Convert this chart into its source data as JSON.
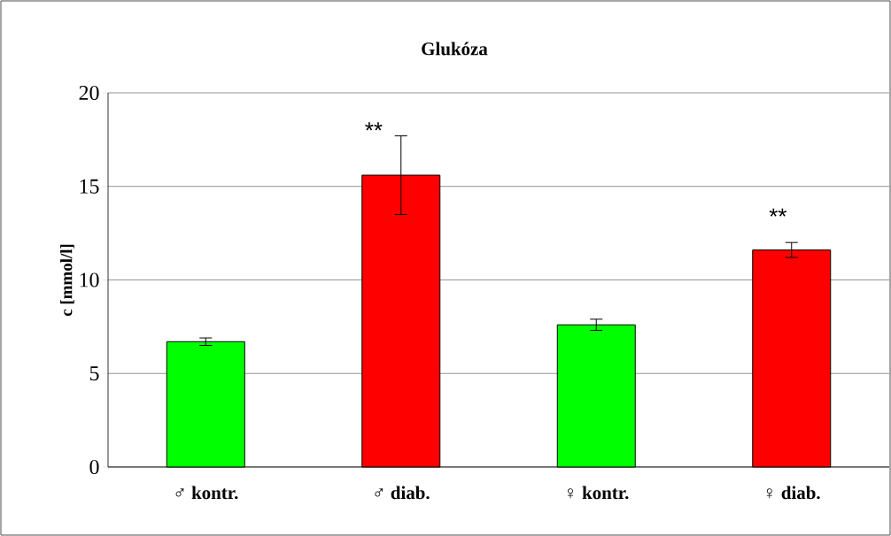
{
  "chart_data": {
    "type": "bar",
    "title": "Glukóza",
    "ylabel": "c [mmol/l]",
    "categories": [
      "♂ **kontr.**",
      "♂ **diab.**",
      "♀ **kontr.**",
      "♀ **diab.**"
    ],
    "values": [
      6.7,
      15.6,
      7.6,
      11.6
    ],
    "errors": [
      0.2,
      2.1,
      0.3,
      0.4
    ],
    "colors": [
      "#00ff00",
      "#ff0000",
      "#00ff00",
      "#ff0000"
    ],
    "ylim": [
      0,
      20
    ],
    "yticks": [
      0,
      5,
      10,
      15,
      20
    ],
    "grid": "y",
    "annotations": [
      "**",
      "**"
    ]
  }
}
